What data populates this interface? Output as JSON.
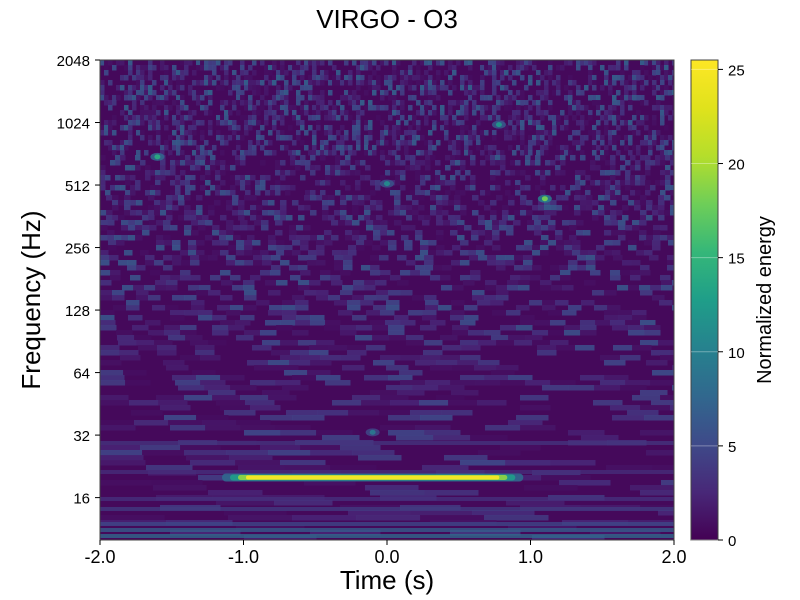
{
  "chart_data": {
    "type": "heatmap",
    "title": "VIRGO - O3",
    "xlabel": "Time (s)",
    "ylabel": "Frequency (Hz)",
    "xlim": [
      -2.0,
      2.0
    ],
    "ylim": [
      10,
      2048
    ],
    "yscale": "log2",
    "x_ticks": [
      -2.0,
      -1.0,
      0.0,
      1.0,
      2.0
    ],
    "x_tick_labels": [
      "-2.0",
      "-1.0",
      "0.0",
      "1.0",
      "2.0"
    ],
    "y_ticks": [
      16,
      32,
      64,
      128,
      256,
      512,
      1024,
      2048
    ],
    "y_tick_labels": [
      "16",
      "32",
      "64",
      "128",
      "256",
      "512",
      "1024",
      "2048"
    ],
    "colorbar": {
      "label": "Normalized energy",
      "range": [
        0,
        25.5
      ],
      "ticks": [
        0,
        5,
        10,
        15,
        20,
        25
      ],
      "tick_labels": [
        "0",
        "5",
        "10",
        "15",
        "20",
        "25"
      ],
      "colormap": "viridis"
    },
    "features": [
      {
        "kind": "band",
        "t_start": -1.15,
        "t_end": 0.95,
        "freq_hz": 20,
        "peak_energy": 25.5
      },
      {
        "kind": "blob",
        "t": -0.1,
        "freq_hz": 33,
        "energy": 9
      },
      {
        "kind": "blob",
        "t": 1.1,
        "freq_hz": 440,
        "energy": 18
      },
      {
        "kind": "blob",
        "t": -1.6,
        "freq_hz": 700,
        "energy": 14
      },
      {
        "kind": "blob",
        "t": 0.78,
        "freq_hz": 1000,
        "energy": 12
      },
      {
        "kind": "blob",
        "t": 0.0,
        "freq_hz": 520,
        "energy": 11
      }
    ]
  }
}
